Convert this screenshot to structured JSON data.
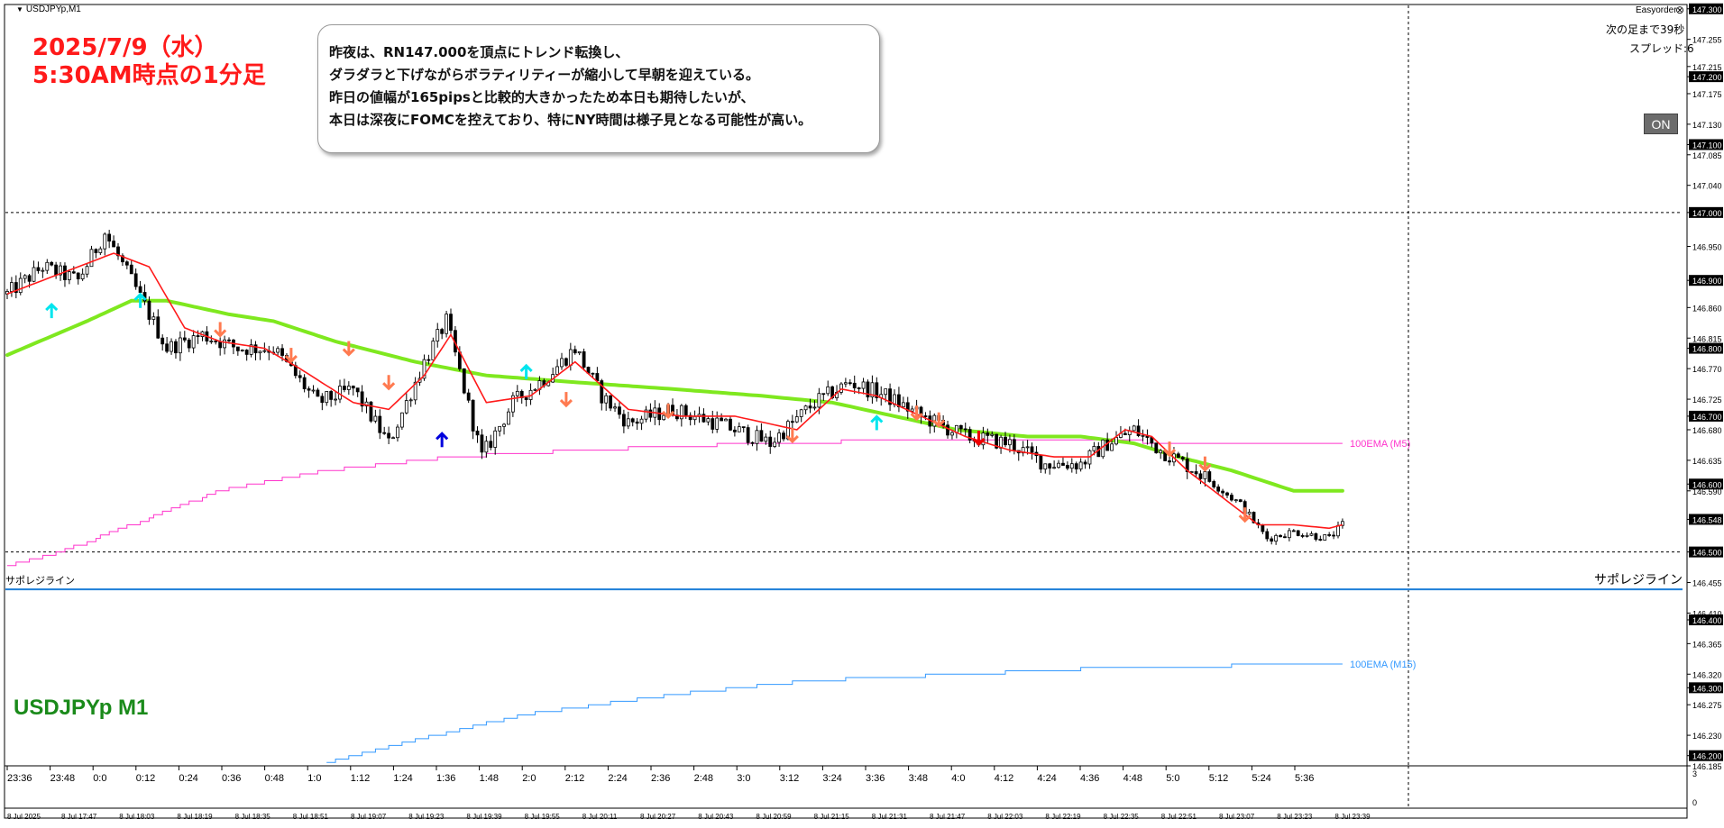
{
  "window": {
    "title": "USDJPYp,M1",
    "menu_icon": "triangle-down-icon"
  },
  "easyorder": {
    "label": "Easyorder",
    "close_icon": "close-circle-icon"
  },
  "side_info": {
    "next_bar": "次の足まで39秒",
    "spread": "スプレッド:6"
  },
  "on_button": {
    "label": "ON"
  },
  "header": {
    "date_line": "2025/7/9（水）",
    "time_line": "5:30AM時点の1分足"
  },
  "note": {
    "lines": [
      "昨夜は、RN147.000を頂点にトレンド転換し、",
      "ダラダラと下げながらボラティリティーが縮小して早朝を迎えている。",
      "昨日の値幅が165pipsと比較的大きかったため本日も期待したいが、",
      "本日は深夜にFOMCを控えており、特にNY時間は様子見となる可能性が高い。"
    ]
  },
  "symbol_label": "USDJPYp M1",
  "support": {
    "label_left": "サポレジライン",
    "label_right": "サポレジライン",
    "price": 146.445,
    "color": "#1e7fd8"
  },
  "colors": {
    "ema_fast": "#ff1a1a",
    "ema_slow": "#7fe81f",
    "ema_m5": "#ff33cc",
    "ema_m15": "#3399ff",
    "candle": "#000000",
    "arrow_down": "#ff7a50",
    "arrow_up": "#00e5ee",
    "arrow_up_dark": "#0000dd",
    "arrow_down_dark": "#ee0000",
    "grid": "#000000",
    "highlight_box": "#000000"
  },
  "chart_data": {
    "type": "candlestick",
    "symbol": "USDJPYp",
    "timeframe": "M1",
    "ylim": [
      146.185,
      147.305
    ],
    "y_ticks": [
      "147.300",
      "147.255",
      "147.215",
      "147.200",
      "147.175",
      "147.130",
      "147.100",
      "147.085",
      "147.040",
      "147.000",
      "146.950",
      "146.900",
      "146.860",
      "146.815",
      "146.800",
      "146.770",
      "146.725",
      "146.700",
      "146.680",
      "146.635",
      "146.600",
      "146.590",
      "146.548",
      "146.500",
      "146.455",
      "146.410",
      "146.400",
      "146.365",
      "146.320",
      "146.300",
      "146.275",
      "146.230",
      "146.200",
      "146.185"
    ],
    "highlighted_y_ticks": [
      "147.300",
      "147.200",
      "147.100",
      "147.000",
      "146.900",
      "146.800",
      "146.700",
      "146.600",
      "146.548",
      "146.500",
      "146.400",
      "146.300",
      "146.200"
    ],
    "time_ticks_top": [
      "23:36",
      "23:48",
      "0:0",
      "0:12",
      "0:24",
      "0:36",
      "0:48",
      "1:0",
      "1:12",
      "1:24",
      "1:36",
      "1:48",
      "2:0",
      "2:12",
      "2:24",
      "2:36",
      "2:48",
      "3:0",
      "3:12",
      "3:24",
      "3:36",
      "3:48",
      "4:0",
      "4:12",
      "4:24",
      "4:36",
      "4:48",
      "5:0",
      "5:12",
      "5:24",
      "5:36"
    ],
    "time_ticks_bottom": [
      "8 Jul 2025",
      "8 Jul 17:47",
      "8 Jul 18:03",
      "8 Jul 18:19",
      "8 Jul 18:35",
      "8 Jul 18:51",
      "8 Jul 19:07",
      "8 Jul 19:23",
      "8 Jul 19:39",
      "8 Jul 19:55",
      "8 Jul 20:11",
      "8 Jul 20:27",
      "8 Jul 20:43",
      "8 Jul 20:59",
      "8 Jul 21:15",
      "8 Jul 21:31",
      "8 Jul 21:47",
      "8 Jul 22:03",
      "8 Jul 22:19",
      "8 Jul 22:35",
      "8 Jul 22:51",
      "8 Jul 23:07",
      "8 Jul 23:23",
      "8 Jul 23:39"
    ],
    "subwindow_ticks": [
      "3",
      "0"
    ],
    "horizontal_lines": [
      147.0,
      146.5
    ],
    "anchors": [
      [
        0,
        146.88
      ],
      [
        8,
        146.92
      ],
      [
        16,
        146.9
      ],
      [
        22,
        146.97
      ],
      [
        28,
        146.9
      ],
      [
        36,
        146.8
      ],
      [
        44,
        146.82
      ],
      [
        52,
        146.8
      ],
      [
        60,
        146.8
      ],
      [
        70,
        146.72
      ],
      [
        78,
        146.74
      ],
      [
        86,
        146.66
      ],
      [
        94,
        146.78
      ],
      [
        99,
        146.84
      ],
      [
        103,
        146.74
      ],
      [
        107,
        146.64
      ],
      [
        114,
        146.72
      ],
      [
        122,
        146.76
      ],
      [
        128,
        146.8
      ],
      [
        134,
        146.73
      ],
      [
        140,
        146.69
      ],
      [
        150,
        146.71
      ],
      [
        160,
        146.69
      ],
      [
        172,
        146.66
      ],
      [
        182,
        146.72
      ],
      [
        190,
        146.75
      ],
      [
        198,
        146.73
      ],
      [
        206,
        146.7
      ],
      [
        216,
        146.67
      ],
      [
        226,
        146.66
      ],
      [
        234,
        146.63
      ],
      [
        242,
        146.63
      ],
      [
        248,
        146.66
      ],
      [
        254,
        146.68
      ],
      [
        260,
        146.65
      ],
      [
        268,
        146.62
      ],
      [
        278,
        146.57
      ],
      [
        284,
        146.52
      ],
      [
        290,
        146.53
      ],
      [
        298,
        146.52
      ],
      [
        301,
        146.54
      ]
    ],
    "ema_fast_values": [
      [
        0,
        146.88
      ],
      [
        12,
        146.91
      ],
      [
        24,
        146.94
      ],
      [
        32,
        146.92
      ],
      [
        40,
        146.83
      ],
      [
        48,
        146.81
      ],
      [
        58,
        146.8
      ],
      [
        66,
        146.77
      ],
      [
        78,
        146.72
      ],
      [
        86,
        146.71
      ],
      [
        94,
        146.76
      ],
      [
        100,
        146.82
      ],
      [
        108,
        146.72
      ],
      [
        118,
        146.73
      ],
      [
        128,
        146.78
      ],
      [
        140,
        146.71
      ],
      [
        152,
        146.7
      ],
      [
        164,
        146.7
      ],
      [
        178,
        146.68
      ],
      [
        188,
        146.74
      ],
      [
        196,
        146.73
      ],
      [
        206,
        146.7
      ],
      [
        216,
        146.67
      ],
      [
        226,
        146.65
      ],
      [
        236,
        146.64
      ],
      [
        244,
        146.64
      ],
      [
        252,
        146.68
      ],
      [
        258,
        146.67
      ],
      [
        266,
        146.62
      ],
      [
        274,
        146.58
      ],
      [
        282,
        146.54
      ],
      [
        290,
        146.54
      ],
      [
        298,
        146.535
      ],
      [
        301,
        146.54
      ]
    ],
    "ema_slow_values": [
      [
        0,
        146.79
      ],
      [
        18,
        146.84
      ],
      [
        28,
        146.87
      ],
      [
        36,
        146.87
      ],
      [
        50,
        146.85
      ],
      [
        60,
        146.84
      ],
      [
        74,
        146.81
      ],
      [
        92,
        146.78
      ],
      [
        108,
        146.76
      ],
      [
        128,
        146.75
      ],
      [
        150,
        146.74
      ],
      [
        170,
        146.73
      ],
      [
        186,
        146.72
      ],
      [
        200,
        146.7
      ],
      [
        214,
        146.68
      ],
      [
        230,
        146.67
      ],
      [
        242,
        146.67
      ],
      [
        254,
        146.66
      ],
      [
        264,
        146.64
      ],
      [
        276,
        146.62
      ],
      [
        290,
        146.59
      ],
      [
        301,
        146.59
      ]
    ],
    "ema_m5_values": [
      [
        0,
        146.48
      ],
      [
        12,
        146.5
      ],
      [
        28,
        146.54
      ],
      [
        48,
        146.59
      ],
      [
        72,
        146.62
      ],
      [
        100,
        146.64
      ],
      [
        130,
        146.65
      ],
      [
        170,
        146.66
      ],
      [
        206,
        146.665
      ],
      [
        240,
        146.665
      ],
      [
        270,
        146.66
      ],
      [
        301,
        146.66
      ]
    ],
    "ema_m15_values": [
      [
        72,
        146.19
      ],
      [
        90,
        146.22
      ],
      [
        116,
        146.26
      ],
      [
        150,
        146.29
      ],
      [
        180,
        146.31
      ],
      [
        216,
        146.32
      ],
      [
        250,
        146.33
      ],
      [
        301,
        146.335
      ]
    ],
    "ema_m5_label": "100EMA (M5)",
    "ema_m15_label": "100EMA (M15)",
    "arrows": [
      {
        "idx": 10,
        "dir": "up",
        "kind": "light",
        "price": 146.855
      },
      {
        "idx": 30,
        "dir": "up",
        "kind": "light",
        "price": 146.87
      },
      {
        "idx": 48,
        "dir": "down",
        "kind": "light",
        "price": 146.828
      },
      {
        "idx": 64,
        "dir": "down",
        "kind": "light",
        "price": 146.79
      },
      {
        "idx": 77,
        "dir": "down",
        "kind": "light",
        "price": 146.8
      },
      {
        "idx": 86,
        "dir": "down",
        "kind": "light",
        "price": 146.75
      },
      {
        "idx": 98,
        "dir": "up",
        "kind": "dark",
        "price": 146.665
      },
      {
        "idx": 117,
        "dir": "up",
        "kind": "light",
        "price": 146.765
      },
      {
        "idx": 126,
        "dir": "down",
        "kind": "light",
        "price": 146.725
      },
      {
        "idx": 149,
        "dir": "down",
        "kind": "light",
        "price": 146.708
      },
      {
        "idx": 177,
        "dir": "down",
        "kind": "light",
        "price": 146.672
      },
      {
        "idx": 196,
        "dir": "up",
        "kind": "light",
        "price": 146.69
      },
      {
        "idx": 205,
        "dir": "down",
        "kind": "light",
        "price": 146.705
      },
      {
        "idx": 210,
        "dir": "down",
        "kind": "light",
        "price": 146.695
      },
      {
        "idx": 219,
        "dir": "down",
        "kind": "dark",
        "price": 146.668
      },
      {
        "idx": 262,
        "dir": "down",
        "kind": "light",
        "price": 146.652
      },
      {
        "idx": 270,
        "dir": "down",
        "kind": "light",
        "price": 146.63
      },
      {
        "idx": 279,
        "dir": "down",
        "kind": "light",
        "price": 146.555
      }
    ]
  }
}
